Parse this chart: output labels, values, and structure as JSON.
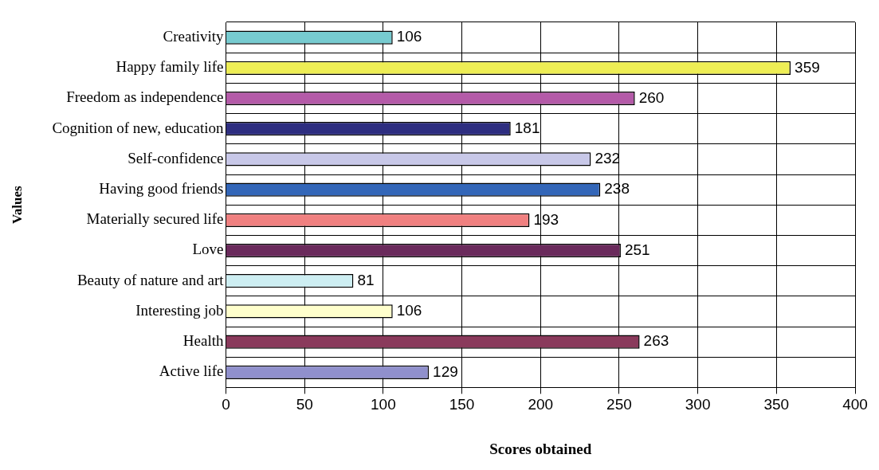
{
  "chart_data": {
    "type": "bar",
    "orientation": "horizontal",
    "xlabel": "Scores obtained",
    "ylabel": "Values",
    "categories": [
      "Creativity",
      "Happy family life",
      "Freedom as independence",
      "Cognition of new, education",
      "Self-confidence",
      "Having good friends",
      "Materially secured life",
      "Love",
      "Beauty of nature and art",
      "Interesting job",
      "Health",
      "Active life"
    ],
    "values": [
      106,
      359,
      260,
      181,
      232,
      238,
      193,
      251,
      81,
      106,
      263,
      129
    ],
    "colors": [
      "#77cbd0",
      "#eeee55",
      "#b45aa8",
      "#2e2e80",
      "#c8c8e8",
      "#3366b8",
      "#f08080",
      "#6a2a5c",
      "#cdeef2",
      "#ffffcc",
      "#8a3a5c",
      "#9090cc"
    ],
    "xlim": [
      0,
      400
    ],
    "xticks": [
      0,
      50,
      100,
      150,
      200,
      250,
      300,
      350,
      400
    ],
    "grid": true,
    "data_labels": true,
    "legend": false
  }
}
